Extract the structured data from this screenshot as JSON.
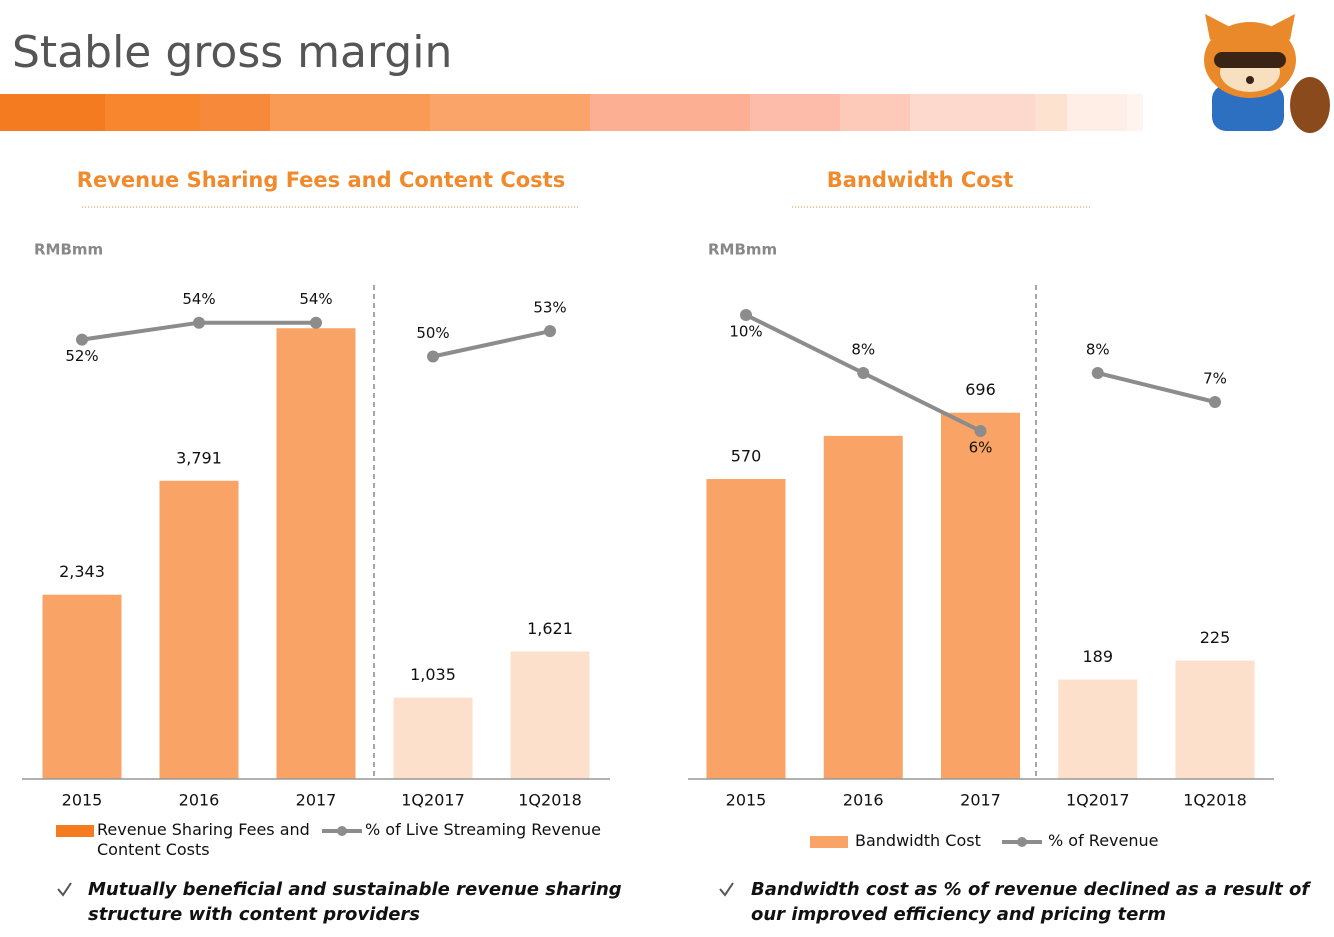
{
  "page": {
    "title": "Stable gross margin",
    "notes": [
      "Mutually beneficial and sustainable revenue sharing structure with content providers",
      "Bandwidth cost as % of revenue declined as a result of our improved efficiency and pricing term"
    ]
  },
  "chart_data": [
    {
      "type": "bar",
      "title": "Revenue Sharing Fees and Content Costs",
      "unit": "RMBmm",
      "categories": [
        "2015",
        "2016",
        "2017",
        "1Q2017",
        "1Q2018"
      ],
      "ylim": [
        0,
        6000
      ],
      "y2lim": [
        0,
        60
      ],
      "series": [
        {
          "name": "Revenue Sharing Fees and Content Costs",
          "color": "#f47b20",
          "colors": [
            "#f9a366",
            "#f9a366",
            "#f9a366",
            "#fde0cc",
            "#fde0cc"
          ],
          "values": [
            2343,
            3791,
            5730,
            1035,
            1621
          ],
          "value_labels": [
            "2,343",
            "3,791",
            null,
            "1,035",
            "1,621"
          ]
        },
        {
          "name": "% of Live Streaming Revenue",
          "type": "line",
          "axis": "y2",
          "color": "#8c8c8c",
          "values": [
            52,
            54,
            54,
            50,
            53
          ],
          "value_labels": [
            "52%",
            "54%",
            "54%",
            "50%",
            "53%"
          ]
        }
      ]
    },
    {
      "type": "bar",
      "title": "Bandwidth Cost",
      "unit": "RMBmm",
      "categories": [
        "2015",
        "2016",
        "2017",
        "1Q2017",
        "1Q2018"
      ],
      "ylim": [
        0,
        800
      ],
      "y2lim": [
        0,
        10
      ],
      "series": [
        {
          "name": "Bandwidth Cost",
          "color": "#f9a366",
          "colors": [
            "#f9a366",
            "#f9a366",
            "#f9a366",
            "#fde0cc",
            "#fde0cc"
          ],
          "values": [
            570,
            652,
            696,
            189,
            225
          ],
          "value_labels": [
            "570",
            null,
            "696",
            "189",
            "225"
          ]
        },
        {
          "name": "% of Revenue",
          "type": "line",
          "axis": "y2",
          "color": "#8c8c8c",
          "values": [
            10,
            8,
            6,
            8,
            7
          ],
          "value_labels": [
            "10%",
            "8%",
            "6%",
            "8%",
            "7%"
          ]
        }
      ]
    }
  ]
}
